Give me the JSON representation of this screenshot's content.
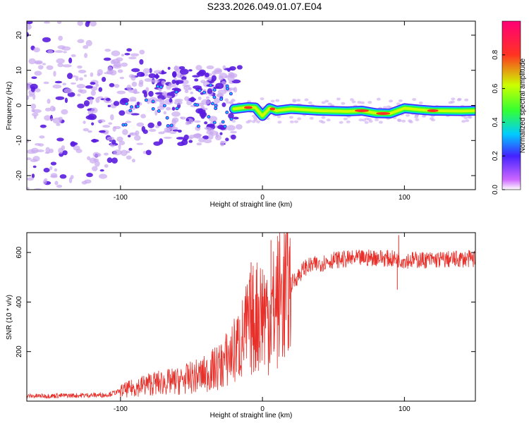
{
  "title": "S233.2026.049.01.07.E04",
  "colors": {
    "snr_line": "#e8302a",
    "scatter_dark": "#5a1ce0",
    "scatter_light": "#c9a8ef",
    "colormap": [
      "#ffffff",
      "#cc66ff",
      "#4422ff",
      "#00ccff",
      "#33ff33",
      "#ccff00",
      "#ff3322",
      "#ff0077"
    ]
  },
  "chart_data": [
    {
      "type": "heatmap",
      "xlabel": "Height of straight line (km)",
      "ylabel": "Frequency (Hz)",
      "xlim": [
        -166,
        150
      ],
      "ylim": [
        -24,
        24
      ],
      "xticks": [
        -100,
        0,
        100
      ],
      "yticks": [
        -20,
        -10,
        0,
        10,
        20
      ],
      "colorbar": {
        "label": "Normalized spectral amplitude",
        "range": [
          0,
          1
        ],
        "ticks": [
          "0.0",
          "0.2",
          "0.4",
          "0.6",
          "0.8"
        ]
      },
      "ridge": {
        "x": [
          -20,
          -10,
          -5,
          0,
          5,
          10,
          20,
          40,
          60,
          70,
          80,
          90,
          100,
          110,
          120,
          140,
          150
        ],
        "frequency": [
          -1,
          -0.5,
          -0.6,
          -3,
          -0.8,
          -1.5,
          -1,
          -1.5,
          -1.7,
          -1.5,
          -2.2,
          -2.3,
          -0.8,
          -1.2,
          -1.5,
          -1.6,
          -1.5
        ]
      }
    },
    {
      "type": "line",
      "xlabel": "Height of straight line (km)",
      "ylabel": "SNR (10 * v/v)",
      "xlim": [
        -166,
        150
      ],
      "ylim": [
        0,
        680
      ],
      "xticks": [
        -100,
        0,
        100
      ],
      "yticks": [
        200,
        400,
        600
      ],
      "profile": {
        "x": [
          -166,
          -110,
          -100,
          -80,
          -60,
          -40,
          -30,
          -20,
          -15,
          -10,
          -5,
          0,
          5,
          10,
          20,
          30,
          50,
          80,
          100,
          120,
          150
        ],
        "snr": [
          20,
          25,
          40,
          70,
          80,
          110,
          140,
          200,
          240,
          300,
          340,
          370,
          340,
          400,
          470,
          540,
          570,
          580,
          570,
          570,
          575
        ]
      },
      "spikes": [
        {
          "x": -8,
          "snr": 540
        },
        {
          "x": -8,
          "snr": 560
        },
        {
          "x": 6,
          "snr": 650
        },
        {
          "x": 8,
          "snr": 200
        },
        {
          "x": 95,
          "snr": 450
        },
        {
          "x": 96,
          "snr": 670
        }
      ]
    }
  ]
}
